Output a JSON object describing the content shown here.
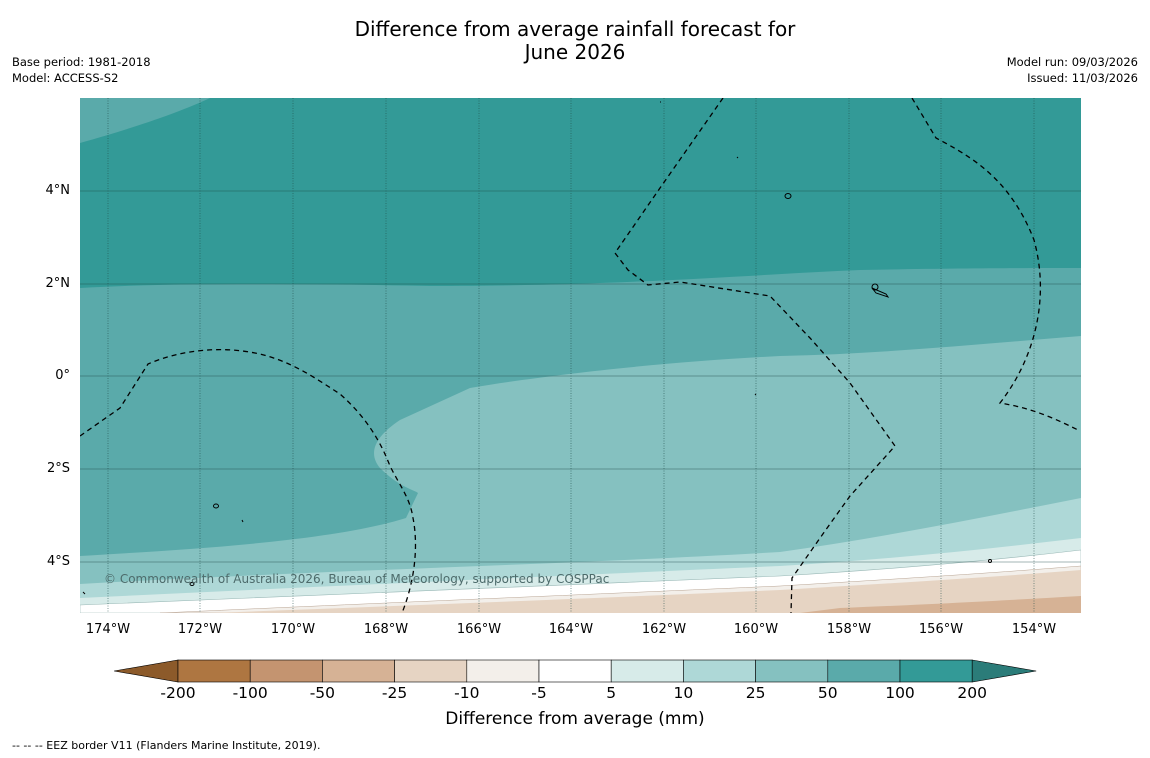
{
  "title": "Difference from average rainfall forecast for\nJune 2026",
  "meta_left": [
    "Base period: 1981-2018",
    "Model: ACCESS-S2"
  ],
  "meta_right": [
    "Model run: 09/03/2026",
    "Issued: 11/03/2026"
  ],
  "latitude_ticks": [
    "4°N",
    "2°N",
    "0°",
    "2°S",
    "4°S"
  ],
  "longitude_ticks": [
    "174°W",
    "172°W",
    "170°W",
    "168°W",
    "166°W",
    "164°W",
    "162°W",
    "160°W",
    "158°W",
    "156°W",
    "154°W"
  ],
  "copyright": "© Commonwealth of Australia 2026, Bureau of Meteorology, supported by COSPPac",
  "colorbar": {
    "labels": [
      "-200",
      "-100",
      "-50",
      "-25",
      "-10",
      "-5",
      "5",
      "10",
      "25",
      "50",
      "100",
      "200"
    ],
    "colors": [
      "#8c5a2a",
      "#ae7641",
      "#c49470",
      "#d6b295",
      "#e6d4c3",
      "#f3efea",
      "#ffffff",
      "#d7ebe9",
      "#aed8d7",
      "#85c1c0",
      "#5aaaaa",
      "#339a97",
      "#2b7c79"
    ],
    "title": "Difference from average (mm)"
  },
  "legend": "--  --  -- EEZ border V11 (Flanders Marine Institute, 2019)."
}
